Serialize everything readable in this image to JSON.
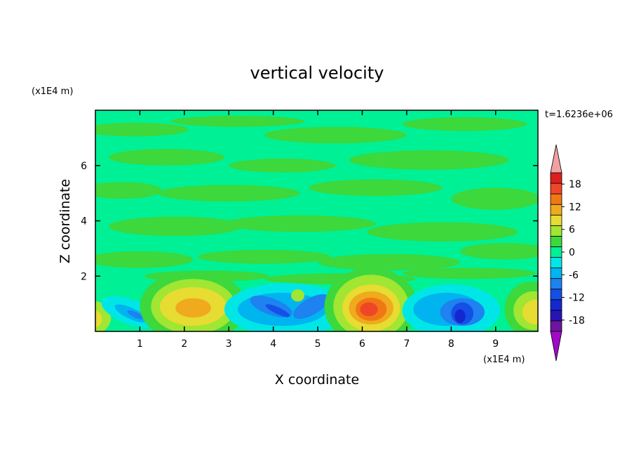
{
  "chart_data": {
    "type": "contour",
    "title": "vertical velocity",
    "xlabel": "X coordinate",
    "ylabel": "Z coordinate",
    "x_unit": "(x1E4 m)",
    "y_unit": "(x1E4 m)",
    "time_label": "t=1.6236e+06",
    "xlim": [
      0,
      9.95
    ],
    "ylim": [
      0,
      8
    ],
    "xticks": [
      1,
      2,
      3,
      4,
      5,
      6,
      7,
      8,
      9
    ],
    "yticks": [
      2,
      4,
      6
    ],
    "clim": [
      -21,
      21
    ],
    "cticks": [
      18,
      12,
      6,
      0,
      -6,
      -12,
      -18
    ],
    "colors": [
      "#6e14a0",
      "#2814b4",
      "#1428d2",
      "#1450e6",
      "#1e82f0",
      "#00b4f0",
      "#00e6e6",
      "#00f096",
      "#3cd83c",
      "#a0e632",
      "#e6dc32",
      "#f0aa1e",
      "#f07814",
      "#f04628",
      "#dc1e1e"
    ],
    "under_color": "#a00ac8",
    "over_color": "#f0a0a0"
  }
}
